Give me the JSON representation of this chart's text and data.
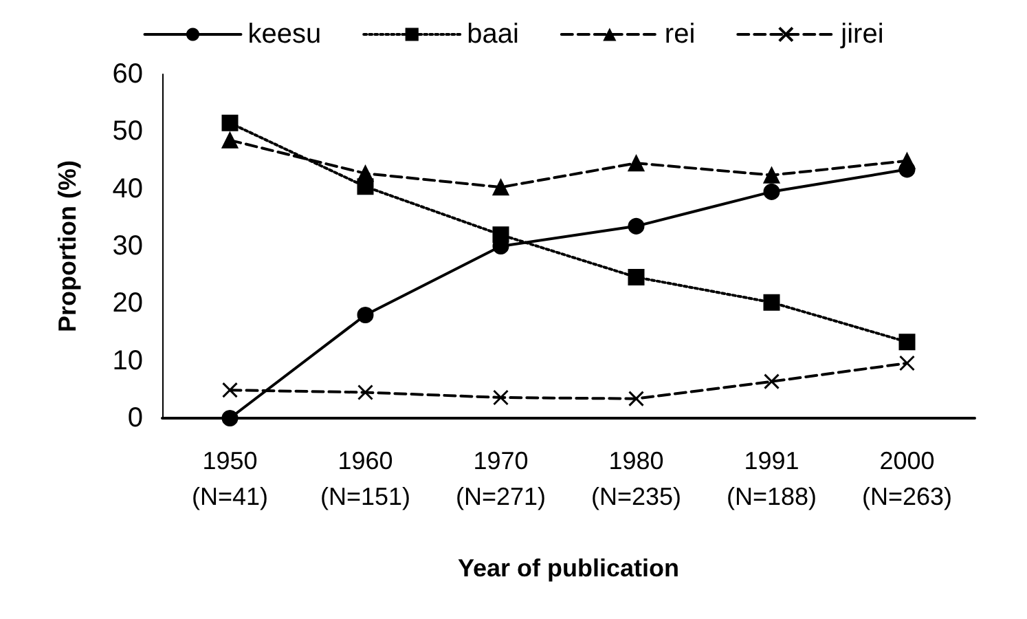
{
  "chart_data": {
    "type": "line",
    "xlabel": "Year of publication",
    "ylabel": "Proportion (%)",
    "categories": [
      "1950\n(N=41)",
      "1960\n(N=151)",
      "1970\n(N=271)",
      "1980\n(N=235)",
      "1991\n(N=188)",
      "2000\n(N=263)"
    ],
    "ylim": [
      0,
      60
    ],
    "yticks": [
      0,
      10,
      20,
      30,
      40,
      50,
      60
    ],
    "grid": false,
    "legend": "top",
    "series": [
      {
        "name": "keesu",
        "color": "#000000",
        "marker": "circle",
        "line_style": "solid",
        "values": [
          0,
          18,
          30,
          33.5,
          39.5,
          43.4
        ]
      },
      {
        "name": "baai",
        "color": "#000000",
        "marker": "square",
        "line_style": "dotted",
        "values": [
          51.5,
          40.4,
          32,
          24.6,
          20.2,
          13.3
        ]
      },
      {
        "name": "rei",
        "color": "#000000",
        "marker": "triangle",
        "line_style": "dashed",
        "values": [
          48.5,
          42.7,
          40.3,
          44.5,
          42.4,
          44.9
        ]
      },
      {
        "name": "jirei",
        "color": "#000000",
        "marker": "cross",
        "line_style": "dashed",
        "values": [
          4.9,
          4.5,
          3.6,
          3.4,
          6.4,
          9.6
        ]
      }
    ]
  }
}
